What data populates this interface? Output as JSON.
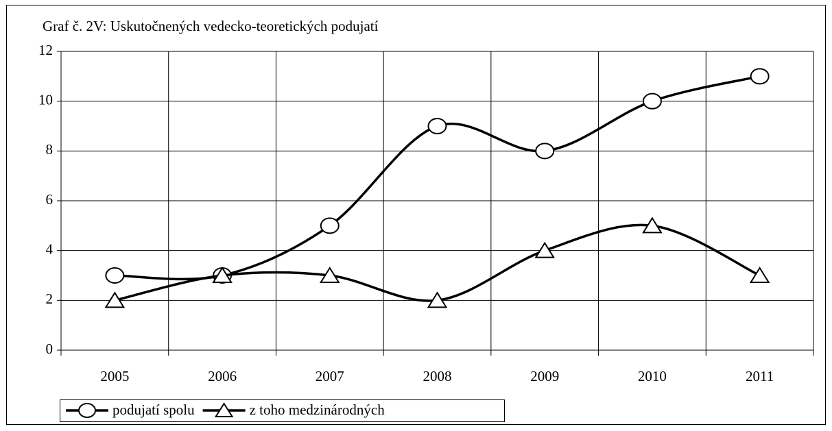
{
  "chart_data": {
    "type": "line",
    "title": "Graf č. 2V: Uskutočnených vedecko-teoretických podujatí",
    "categories": [
      "2005",
      "2006",
      "2007",
      "2008",
      "2009",
      "2010",
      "2011"
    ],
    "series": [
      {
        "name": "podujatí spolu",
        "color": "#000000",
        "marker": "circle",
        "values": [
          3,
          3,
          5,
          9,
          8,
          10,
          11
        ]
      },
      {
        "name": "z toho medzinárodných",
        "color": "#000000",
        "marker": "triangle",
        "values": [
          2,
          3,
          3,
          2,
          4,
          5,
          3
        ]
      }
    ],
    "ylim": [
      0,
      12
    ],
    "yticks": [
      0,
      2,
      4,
      6,
      8,
      10,
      12
    ],
    "grid": true,
    "smooth": true,
    "legend": "bottom-left"
  }
}
